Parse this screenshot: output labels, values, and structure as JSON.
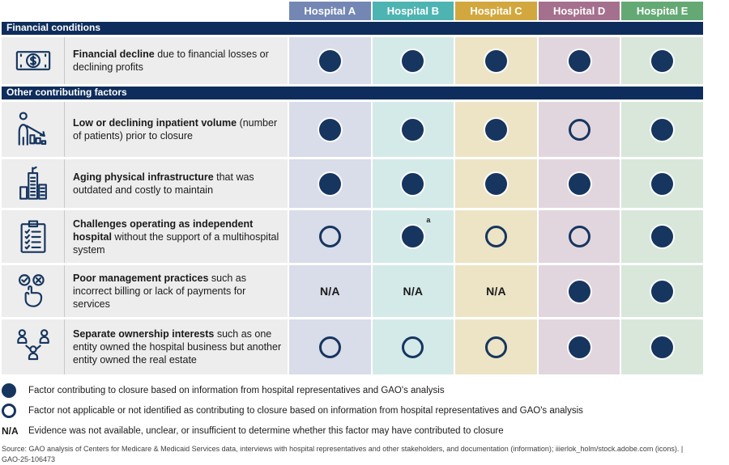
{
  "chart_data": {
    "type": "table",
    "columns": [
      {
        "label": "Hospital A",
        "header_color": "#7487b4",
        "cell_color": "#d9dce9"
      },
      {
        "label": "Hospital B",
        "header_color": "#4eb4b2",
        "cell_color": "#d4eae8"
      },
      {
        "label": "Hospital C",
        "header_color": "#d2a83e",
        "cell_color": "#ece4c5"
      },
      {
        "label": "Hospital D",
        "header_color": "#a5708d",
        "cell_color": "#e2d6de"
      },
      {
        "label": "Hospital E",
        "header_color": "#64a974",
        "cell_color": "#d8e7da"
      }
    ],
    "sections": [
      {
        "title": "Financial conditions",
        "rows": [
          {
            "icon": "money-icon",
            "bold": "Financial decline",
            "rest": " due to financial losses or declining profits",
            "cells": [
              "filled",
              "filled",
              "filled",
              "filled",
              "filled"
            ]
          }
        ]
      },
      {
        "title": "Other contributing factors",
        "rows": [
          {
            "icon": "declining-volume-icon",
            "bold": "Low or declining inpatient volume",
            "rest": " (number of patients) prior to closure",
            "cells": [
              "filled",
              "filled",
              "filled",
              "open",
              "filled"
            ]
          },
          {
            "icon": "building-icon",
            "bold": "Aging physical infrastructure",
            "rest": " that was outdated and costly to maintain",
            "cells": [
              "filled",
              "filled",
              "filled",
              "filled",
              "filled"
            ]
          },
          {
            "icon": "checklist-icon",
            "bold": "Challenges operating as independent hospital",
            "rest": " without the support of a multihospital system",
            "cells": [
              "open",
              "filled:a",
              "open",
              "open",
              "filled"
            ]
          },
          {
            "icon": "management-icon",
            "bold": "Poor management practices",
            "rest": " such as incorrect billing or lack of payments for services",
            "cells": [
              "na",
              "na",
              "na",
              "filled",
              "filled"
            ]
          },
          {
            "icon": "ownership-icon",
            "bold": "Separate ownership interests",
            "rest": " such as one entity owned the hospital business but another entity owned the real estate",
            "cells": [
              "open",
              "open",
              "open",
              "filled",
              "filled"
            ]
          }
        ]
      }
    ]
  },
  "na_label": "N/A",
  "legend": [
    {
      "symbol": "filled-circle",
      "text": "Factor contributing to closure based on information from hospital representatives and GAO's analysis"
    },
    {
      "symbol": "open-circle",
      "text": "Factor not applicable or not identified as contributing to closure based on information from hospital representatives and GAO's analysis"
    },
    {
      "symbol": "N/A",
      "text": "Evidence was not available, unclear, or insufficient to determine whether this factor may have contributed to closure"
    }
  ],
  "source": {
    "text": "Source: GAO analysis of Centers for Medicare & Medicaid Services data, interviews with hospital representatives and other stakeholders, and documentation (information); iiierlok_holm/stock.adobe.com (icons).  |",
    "report_id": "GAO-25-106473"
  },
  "colors": {
    "section_bar_navy": "#0e2d5c",
    "symbol_navy": "#16355f"
  }
}
